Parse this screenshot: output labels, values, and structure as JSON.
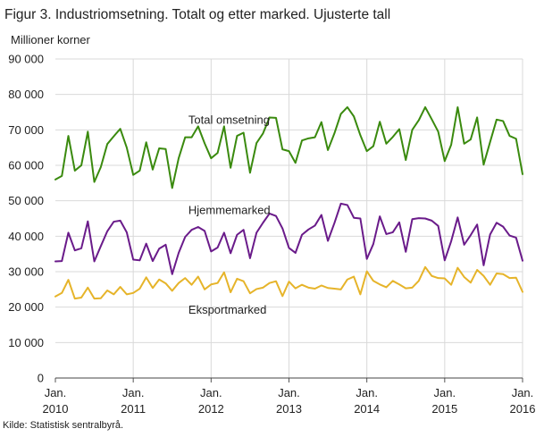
{
  "title": "Figur 3. Industriomsetning. Totalt og etter marked. Ujusterte tall",
  "source": "Kilde: Statistisk sentralbyrå.",
  "chart_data": {
    "type": "line",
    "ylabel": "Millioner  korner",
    "ylim": [
      0,
      90000
    ],
    "yticks": [
      0,
      10000,
      20000,
      30000,
      40000,
      50000,
      60000,
      70000,
      80000,
      90000
    ],
    "ytick_labels": [
      "0",
      "10 000",
      "20 000",
      "30 000",
      "40 000",
      "50 000",
      "60 000",
      "70 000",
      "80 000",
      "90 000"
    ],
    "xlim": [
      0,
      72
    ],
    "xtick_labels": [
      {
        "pos": 0,
        "line1": "Jan.",
        "line2": "2010"
      },
      {
        "pos": 12,
        "line1": "Jan.",
        "line2": "2011"
      },
      {
        "pos": 24,
        "line1": "Jan.",
        "line2": "2012"
      },
      {
        "pos": 36,
        "line1": "Jan.",
        "line2": "2013"
      },
      {
        "pos": 48,
        "line1": "Jan.",
        "line2": "2014"
      },
      {
        "pos": 60,
        "line1": "Jan.",
        "line2": "2015"
      },
      {
        "pos": 72,
        "line1": "Jan.",
        "line2": "2016"
      }
    ],
    "grid": true,
    "series": [
      {
        "name": "Total omsetning",
        "color": "#3a8a0e",
        "label_x": 20.5,
        "label_y": 73000,
        "values": [
          56000,
          57000,
          68300,
          58500,
          60000,
          69500,
          55300,
          59500,
          66000,
          68200,
          70300,
          65000,
          57300,
          58500,
          66500,
          58800,
          64800,
          64600,
          53600,
          62000,
          67900,
          67900,
          71000,
          66200,
          62000,
          63500,
          71000,
          59300,
          68300,
          69200,
          57900,
          66300,
          69000,
          73500,
          73400,
          64500,
          64000,
          60700,
          67000,
          67600,
          67900,
          72200,
          64300,
          69000,
          74500,
          76400,
          73800,
          68500,
          64000,
          65400,
          72300,
          66100,
          68000,
          70200,
          61500,
          70000,
          72700,
          76400,
          73000,
          69500,
          61200,
          65800,
          76400,
          66100,
          67300,
          73500,
          60200,
          66600,
          72900,
          72500,
          68300,
          67500,
          57500
        ]
      },
      {
        "name": "Hjemmemarked",
        "color": "#6a1b8a",
        "label_x": 20.5,
        "label_y": 47500,
        "values": [
          32900,
          33000,
          41000,
          36000,
          36600,
          44200,
          32900,
          37200,
          41400,
          44100,
          44400,
          41100,
          33400,
          33200,
          37900,
          33000,
          36500,
          37600,
          29300,
          35300,
          39800,
          41800,
          42600,
          41500,
          35700,
          36800,
          41000,
          35200,
          40400,
          41800,
          33800,
          41000,
          43800,
          46400,
          45700,
          42200,
          36700,
          35300,
          40400,
          41900,
          43000,
          46000,
          38700,
          43700,
          49200,
          48800,
          45200,
          45000,
          33600,
          37800,
          45600,
          40600,
          41100,
          43900,
          35600,
          44800,
          45100,
          45000,
          44400,
          42900,
          33200,
          38600,
          45300,
          37600,
          40300,
          43300,
          31800,
          40500,
          43800,
          42700,
          40200,
          39600,
          33100
        ]
      },
      {
        "name": "Eksportmarked",
        "color": "#e6b42a",
        "label_x": 20.5,
        "label_y": 19400,
        "values": [
          23000,
          24000,
          27700,
          22400,
          22700,
          25500,
          22400,
          22500,
          24700,
          23600,
          25700,
          23600,
          24000,
          25200,
          28400,
          25400,
          27800,
          26700,
          24600,
          26800,
          28200,
          26300,
          28600,
          25000,
          26400,
          26800,
          29800,
          24200,
          28000,
          27300,
          23900,
          25100,
          25500,
          26800,
          27300,
          23100,
          27200,
          25300,
          26300,
          25500,
          25200,
          26100,
          25400,
          25200,
          25000,
          27800,
          28600,
          23600,
          30100,
          27400,
          26400,
          25600,
          27400,
          26400,
          25300,
          25500,
          27400,
          31300,
          28800,
          28200,
          28100,
          26300,
          31100,
          28500,
          26900,
          30500,
          28800,
          26300,
          29500,
          29300,
          28200,
          28300,
          24300
        ]
      }
    ]
  }
}
